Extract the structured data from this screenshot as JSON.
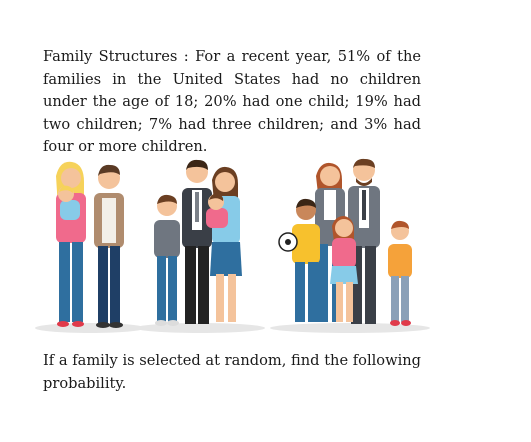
{
  "document": {
    "paragraph_1": "Family Structures : For a recent year, 51% of the families in the United States had no children under the age of 18; 20% had one child; 19% had two children; 7% had three children; and 3% had four or more children.",
    "paragraph_2": "If a family is selected at random, find the following probability."
  },
  "illustration": {
    "groups": [
      "family-no-children",
      "family-two-children",
      "family-three-children"
    ],
    "colors": {
      "skin": "#f4c39b",
      "hair_blonde": "#f6d25a",
      "hair_brown": "#6b3f22",
      "hair_dark": "#3b2616",
      "jeans": "#2f6f9f",
      "suit_gray": "#6f7680",
      "suit_dark": "#3a3f47",
      "pink": "#f06a8c",
      "light_blue": "#87cbe8",
      "orange": "#f5a23a",
      "yellow": "#f7c12d",
      "shadow": "#e6e6e6"
    }
  }
}
